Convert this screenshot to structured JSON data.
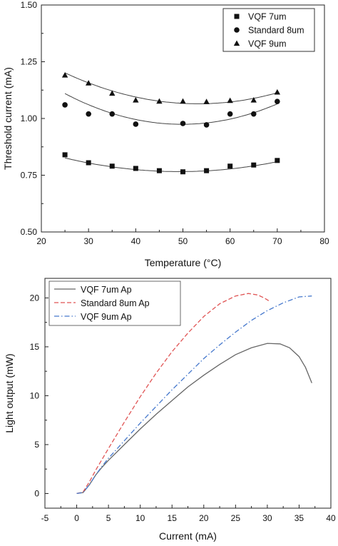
{
  "chart_data": [
    {
      "type": "scatter",
      "xlabel": "Temperature (°C)",
      "ylabel": "Threshold current (mA)",
      "xlim": [
        20,
        80
      ],
      "ylim": [
        0.5,
        1.5
      ],
      "xticks": [
        "20",
        "30",
        "40",
        "50",
        "60",
        "70",
        "80"
      ],
      "yticks": [
        "0.50",
        "0.75",
        "1.00",
        "1.25",
        "1.50"
      ],
      "grid": false,
      "legend_position": "top-right",
      "fit_lines": true,
      "series": [
        {
          "name": "VQF 7um",
          "marker": "square",
          "points": [
            [
              25,
              0.84
            ],
            [
              30,
              0.805
            ],
            [
              35,
              0.79
            ],
            [
              40,
              0.78
            ],
            [
              45,
              0.77
            ],
            [
              50,
              0.765
            ],
            [
              55,
              0.77
            ],
            [
              60,
              0.79
            ],
            [
              65,
              0.795
            ],
            [
              70,
              0.815
            ]
          ],
          "fit": [
            0.00010182,
            -0.010038,
            1.0134
          ]
        },
        {
          "name": "Standard 8um",
          "marker": "circle",
          "points": [
            [
              25,
              1.06
            ],
            [
              30,
              1.02
            ],
            [
              35,
              1.02
            ],
            [
              40,
              0.975
            ],
            [
              50,
              0.978
            ],
            [
              55,
              0.972
            ],
            [
              60,
              1.02
            ],
            [
              65,
              1.02
            ],
            [
              70,
              1.075
            ]
          ],
          "fit": [
            0.00022025,
            -0.021935,
            1.5205
          ]
        },
        {
          "name": "VQF 9um",
          "marker": "triangle",
          "points": [
            [
              25,
              1.19
            ],
            [
              30,
              1.155
            ],
            [
              35,
              1.11
            ],
            [
              40,
              1.08
            ],
            [
              45,
              1.075
            ],
            [
              50,
              1.075
            ],
            [
              55,
              1.073
            ],
            [
              60,
              1.078
            ],
            [
              65,
              1.08
            ],
            [
              70,
              1.115
            ]
          ],
          "fit": [
            0.00017136,
            -0.018231,
            1.5497
          ]
        }
      ]
    },
    {
      "type": "line",
      "xlabel": "Current (mA)",
      "ylabel": "Light output (mW)",
      "xlim": [
        -5,
        40
      ],
      "ylim": [
        -1.5,
        22
      ],
      "xticks": [
        "-5",
        "0",
        "5",
        "10",
        "15",
        "20",
        "25",
        "30",
        "35",
        "40"
      ],
      "yticks": [
        "0",
        "5",
        "10",
        "15",
        "20"
      ],
      "grid": false,
      "legend_position": "top-left",
      "series": [
        {
          "name": "VQF 7um Ap",
          "color": "#666666",
          "dash": "solid",
          "points": [
            [
              0,
              0
            ],
            [
              1,
              0.1
            ],
            [
              2,
              0.9
            ],
            [
              3,
              1.9
            ],
            [
              4,
              2.7
            ],
            [
              5,
              3.4
            ],
            [
              7.5,
              5.0
            ],
            [
              10,
              6.6
            ],
            [
              12.5,
              8.1
            ],
            [
              15,
              9.5
            ],
            [
              17.5,
              10.9
            ],
            [
              20,
              12.1
            ],
            [
              22.5,
              13.2
            ],
            [
              25,
              14.2
            ],
            [
              27.5,
              14.9
            ],
            [
              30,
              15.35
            ],
            [
              32,
              15.3
            ],
            [
              33.5,
              14.9
            ],
            [
              35,
              14.0
            ],
            [
              36,
              12.9
            ],
            [
              37,
              11.3
            ]
          ]
        },
        {
          "name": "Standard 8um Ap",
          "color": "#e05555",
          "dash": "dashed",
          "points": [
            [
              0,
              0
            ],
            [
              1,
              0.15
            ],
            [
              2,
              1.2
            ],
            [
              3,
              2.4
            ],
            [
              4,
              3.5
            ],
            [
              5,
              4.6
            ],
            [
              7.5,
              7.3
            ],
            [
              10,
              9.9
            ],
            [
              12.5,
              12.3
            ],
            [
              15,
              14.5
            ],
            [
              17.5,
              16.4
            ],
            [
              20,
              18.1
            ],
            [
              22.5,
              19.4
            ],
            [
              25,
              20.2
            ],
            [
              27,
              20.45
            ],
            [
              28.5,
              20.3
            ],
            [
              29.5,
              20.0
            ],
            [
              30.5,
              19.6
            ]
          ]
        },
        {
          "name": "VQF 9um Ap",
          "color": "#4477cc",
          "dash": "dashdot",
          "points": [
            [
              0,
              0
            ],
            [
              1,
              0.1
            ],
            [
              2,
              0.9
            ],
            [
              3,
              1.9
            ],
            [
              4,
              2.8
            ],
            [
              5,
              3.6
            ],
            [
              7.5,
              5.4
            ],
            [
              10,
              7.2
            ],
            [
              12.5,
              8.9
            ],
            [
              15,
              10.6
            ],
            [
              17.5,
              12.2
            ],
            [
              20,
              13.8
            ],
            [
              22.5,
              15.2
            ],
            [
              25,
              16.5
            ],
            [
              27.5,
              17.7
            ],
            [
              30,
              18.7
            ],
            [
              32.5,
              19.5
            ],
            [
              35,
              20.1
            ],
            [
              37,
              20.2
            ]
          ]
        }
      ]
    }
  ]
}
